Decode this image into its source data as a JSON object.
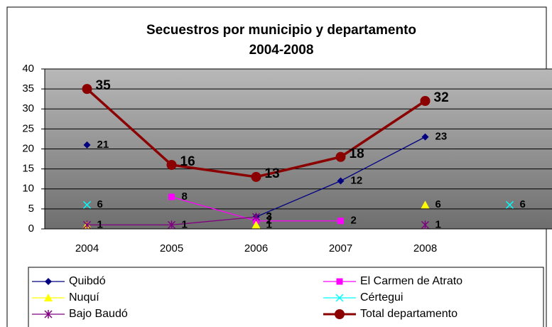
{
  "chart_data": {
    "type": "line",
    "title": [
      "Secuestros por municipio y departamento",
      "2004-2008"
    ],
    "categories": [
      "2004",
      "2005",
      "2006",
      "2007",
      "2008",
      null
    ],
    "ylim": [
      0,
      40
    ],
    "yticks": [
      0,
      5,
      10,
      15,
      20,
      25,
      30,
      35,
      40
    ],
    "grid": true,
    "legend": "bottom",
    "series": [
      {
        "name": "Quibdó",
        "color": "#000080",
        "marker": "diamond",
        "values": [
          21,
          null,
          3,
          12,
          23,
          null
        ]
      },
      {
        "name": "El Carmen de Atrato",
        "color": "#ff00ff",
        "marker": "square",
        "values": [
          null,
          8,
          2,
          2,
          null,
          null
        ]
      },
      {
        "name": "Nuquí",
        "color": "#ffff00",
        "marker": "triangle",
        "values": [
          1,
          null,
          1,
          null,
          6,
          null
        ]
      },
      {
        "name": "Cértegui",
        "color": "#00ffff",
        "marker": "x",
        "values": [
          6,
          null,
          null,
          null,
          null,
          6
        ]
      },
      {
        "name": "Bajo Baudó",
        "color": "#800080",
        "marker": "star",
        "values": [
          1,
          1,
          3,
          null,
          1,
          null
        ]
      },
      {
        "name": "Total departamento",
        "color": "#8b0000",
        "marker": "circle",
        "values": [
          35,
          16,
          13,
          18,
          32,
          null
        ]
      }
    ]
  }
}
